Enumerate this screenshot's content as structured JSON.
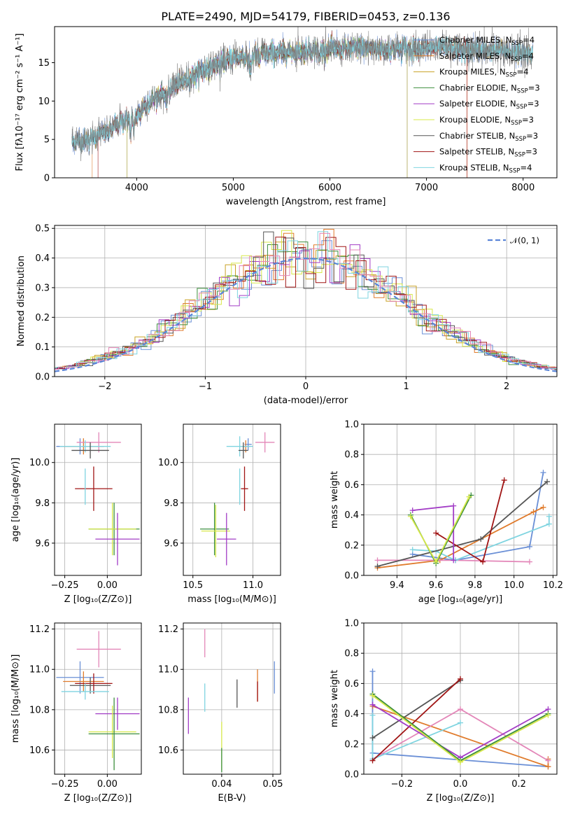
{
  "colors": {
    "Chabrier MILES": "#6a8fd6",
    "Salpeter MILES": "#e07b2c",
    "Kroupa MILES": "#c9a227",
    "Chabrier ELODIE": "#3d8f3d",
    "Salpeter ELODIE": "#a23cc6",
    "Kroupa ELODIE": "#d7e84a",
    "Chabrier STELIB": "#555555",
    "Salpeter STELIB": "#a01515",
    "Kroupa STELIB": "#7fd4e0",
    "Pink": "#e386b8",
    "Normal": "#5b85d8"
  },
  "chart_data": [
    {
      "id": "spectrum",
      "type": "line",
      "title": "PLATE=2490, MJD=54179, FIBERID=0453, z=0.136",
      "xlabel": "wavelength [Angstrom, rest frame]",
      "ylabel": "Flux [fλ10⁻¹⁷ erg cm⁻² s⁻¹ A⁻¹]",
      "xlim": [
        3150,
        8350
      ],
      "ylim": [
        0,
        19.7
      ],
      "xticks": [
        4000,
        5000,
        6000,
        7000,
        8000
      ],
      "yticks": [
        0,
        5,
        10,
        15
      ],
      "continuum_x": [
        3330,
        3500,
        3700,
        3900,
        4100,
        4300,
        4500,
        4700,
        4900,
        5100,
        5300,
        5500,
        5700,
        5900,
        6100,
        6300,
        6500,
        6700,
        6900,
        7100,
        7300,
        7500,
        7700,
        7900,
        8100
      ],
      "continuum_y": [
        4.7,
        5.0,
        6.0,
        7.8,
        9.7,
        11.4,
        12.7,
        14.0,
        15.2,
        15.8,
        16.1,
        16.3,
        16.5,
        16.7,
        16.8,
        16.9,
        16.8,
        16.8,
        16.9,
        16.9,
        16.8,
        16.7,
        16.6,
        16.5,
        16.2
      ],
      "legend_position": "upper-right",
      "legend": [
        {
          "label": "Chabrier MILES, N",
          "sub": "SSP",
          "suffix": "=4",
          "color_key": "Chabrier MILES"
        },
        {
          "label": "Salpeter MILES, N",
          "sub": "SSP",
          "suffix": "=4",
          "color_key": "Salpeter MILES"
        },
        {
          "label": "Kroupa MILES, N",
          "sub": "SSP",
          "suffix": "=4",
          "color_key": "Kroupa MILES"
        },
        {
          "label": "Chabrier ELODIE, N",
          "sub": "SSP",
          "suffix": "=3",
          "color_key": "Chabrier ELODIE"
        },
        {
          "label": "Salpeter ELODIE, N",
          "sub": "SSP",
          "suffix": "=3",
          "color_key": "Salpeter ELODIE"
        },
        {
          "label": "Kroupa ELODIE, N",
          "sub": "SSP",
          "suffix": "=3",
          "color_key": "Kroupa ELODIE"
        },
        {
          "label": "Chabrier STELIB, N",
          "sub": "SSP",
          "suffix": "=3",
          "color_key": "Chabrier STELIB"
        },
        {
          "label": "Salpeter STELIB, N",
          "sub": "SSP",
          "suffix": "=3",
          "color_key": "Salpeter STELIB"
        },
        {
          "label": "Kroupa STELIB, N",
          "sub": "SSP",
          "suffix": "=4",
          "color_key": "Kroupa STELIB"
        }
      ]
    },
    {
      "id": "residuals",
      "type": "line",
      "xlabel": "(data-model)/error",
      "ylabel": "Normed distribution",
      "xlim": [
        -2.5,
        2.5
      ],
      "ylim": [
        0,
        0.51
      ],
      "xticks": [
        -2,
        -1,
        0,
        1,
        2
      ],
      "yticks": [
        0.0,
        0.1,
        0.2,
        0.3,
        0.4,
        0.5
      ],
      "bin_width": 0.1,
      "grid": true,
      "legend_position": "upper-right",
      "legend": [
        {
          "label": "𝒩(0, 1)",
          "color_key": "Normal"
        }
      ]
    },
    {
      "id": "age_vs_Z",
      "type": "scatter",
      "xlabel": "Z [log₁₀(Z/Z⊙)]",
      "ylabel": "age  [log₁₀(age/yr)]",
      "xlim": [
        -0.31,
        0.2
      ],
      "ylim": [
        9.44,
        10.19
      ],
      "xticks": [
        -0.25,
        0.0
      ],
      "yticks": [
        9.6,
        9.8,
        10.0
      ],
      "grid": true,
      "points": [
        {
          "color_key": "Chabrier MILES",
          "x": -0.16,
          "y": 10.08,
          "xerr": 0.14,
          "yerr": 0.04
        },
        {
          "color_key": "Salpeter MILES",
          "x": -0.14,
          "y": 10.08,
          "xerr": 0.12,
          "yerr": 0.04
        },
        {
          "color_key": "Pink",
          "x": -0.05,
          "y": 10.1,
          "xerr": 0.13,
          "yerr": 0.05
        },
        {
          "color_key": "Kroupa STELIB",
          "x": -0.13,
          "y": 10.08,
          "xerr": 0.15,
          "yerr": 0.03
        },
        {
          "color_key": "Chabrier STELIB",
          "x": -0.1,
          "y": 10.06,
          "xerr": 0.11,
          "yerr": 0.04
        },
        {
          "color_key": "Salpeter STELIB",
          "x": -0.08,
          "y": 9.87,
          "xerr": 0.11,
          "yerr": 0.11
        },
        {
          "color_key": "Chabrier ELODIE",
          "x": 0.04,
          "y": 9.67,
          "xerr": 0.15,
          "yerr": 0.13
        },
        {
          "color_key": "Kroupa ELODIE",
          "x": 0.03,
          "y": 9.67,
          "xerr": 0.14,
          "yerr": 0.13
        },
        {
          "color_key": "Salpeter ELODIE",
          "x": 0.06,
          "y": 9.62,
          "xerr": 0.13,
          "yerr": 0.13
        },
        {
          "color_key": "Kroupa STELIB",
          "x": -0.13,
          "y": 9.88,
          "xerr": 0.0,
          "yerr": 0.09
        }
      ]
    },
    {
      "id": "age_vs_mass",
      "type": "scatter",
      "xlabel": "mass [log₁₀(M/M⊙)]",
      "xlim": [
        10.42,
        11.23
      ],
      "ylim": [
        9.44,
        10.19
      ],
      "xticks": [
        10.5,
        11.0
      ],
      "yticks": [
        9.6,
        9.8,
        10.0
      ],
      "grid": true,
      "points": [
        {
          "color_key": "Pink",
          "x": 11.1,
          "y": 10.1,
          "xerr": 0.08,
          "yerr": 0.05
        },
        {
          "color_key": "Chabrier MILES",
          "x": 10.96,
          "y": 10.09,
          "xerr": 0.03,
          "yerr": 0.03
        },
        {
          "color_key": "Salpeter MILES",
          "x": 10.94,
          "y": 10.08,
          "xerr": 0.04,
          "yerr": 0.03
        },
        {
          "color_key": "Kroupa STELIB",
          "x": 10.89,
          "y": 10.08,
          "xerr": 0.11,
          "yerr": 0.05
        },
        {
          "color_key": "Chabrier STELIB",
          "x": 10.92,
          "y": 10.06,
          "xerr": 0.04,
          "yerr": 0.04
        },
        {
          "color_key": "Salpeter STELIB",
          "x": 10.93,
          "y": 9.87,
          "xerr": 0.03,
          "yerr": 0.11
        },
        {
          "color_key": "Kroupa STELIB",
          "x": 10.89,
          "y": 9.88,
          "xerr": 0.0,
          "yerr": 0.09
        },
        {
          "color_key": "Chabrier ELODIE",
          "x": 10.68,
          "y": 9.67,
          "xerr": 0.12,
          "yerr": 0.13
        },
        {
          "color_key": "Kroupa ELODIE",
          "x": 10.69,
          "y": 9.66,
          "xerr": 0.12,
          "yerr": 0.13
        },
        {
          "color_key": "Salpeter ELODIE",
          "x": 10.78,
          "y": 9.62,
          "xerr": 0.08,
          "yerr": 0.13
        }
      ]
    },
    {
      "id": "weight_vs_age",
      "type": "line",
      "xlabel": "age  [log₁₀(age/yr)]",
      "ylabel": "mass weight",
      "xlim": [
        9.23,
        10.22
      ],
      "ylim": [
        0,
        1.0
      ],
      "xticks": [
        9.4,
        9.6,
        9.8,
        10.0,
        10.2
      ],
      "yticks": [
        0.0,
        0.2,
        0.4,
        0.6,
        0.8,
        1.0
      ],
      "grid": true,
      "series": [
        {
          "color_key": "Chabrier MILES",
          "x": [
            9.48,
            9.7,
            10.08,
            10.15
          ],
          "y": [
            0.14,
            0.1,
            0.19,
            0.68
          ]
        },
        {
          "color_key": "Salpeter MILES",
          "x": [
            9.3,
            9.62,
            10.1,
            10.15
          ],
          "y": [
            0.05,
            0.1,
            0.42,
            0.45
          ]
        },
        {
          "color_key": "Pink",
          "x": [
            9.3,
            9.7,
            10.08
          ],
          "y": [
            0.1,
            0.1,
            0.09
          ]
        },
        {
          "color_key": "Kroupa STELIB",
          "x": [
            9.48,
            9.6,
            9.7,
            10.18,
            10.18
          ],
          "y": [
            0.17,
            0.16,
            0.1,
            0.34,
            0.39
          ]
        },
        {
          "color_key": "Chabrier STELIB",
          "x": [
            9.3,
            9.83,
            10.17
          ],
          "y": [
            0.06,
            0.24,
            0.62
          ]
        },
        {
          "color_key": "Salpeter STELIB",
          "x": [
            9.6,
            9.84,
            9.95
          ],
          "y": [
            0.28,
            0.09,
            0.63
          ]
        },
        {
          "color_key": "Salpeter ELODIE",
          "x": [
            9.48,
            9.69,
            9.69
          ],
          "y": [
            0.43,
            0.46,
            0.1
          ]
        },
        {
          "color_key": "Chabrier ELODIE",
          "x": [
            9.47,
            9.6,
            9.78
          ],
          "y": [
            0.4,
            0.08,
            0.53
          ]
        },
        {
          "color_key": "Kroupa ELODIE",
          "x": [
            9.47,
            9.6,
            9.77
          ],
          "y": [
            0.39,
            0.09,
            0.52
          ]
        }
      ]
    },
    {
      "id": "mass_vs_Z",
      "type": "scatter",
      "xlabel": "Z [log₁₀(Z/Z⊙)]",
      "ylabel": "mass [log₁₀(M/M⊙)]",
      "xlim": [
        -0.31,
        0.2
      ],
      "ylim": [
        10.48,
        11.23
      ],
      "xticks": [
        -0.25,
        0.0
      ],
      "yticks": [
        10.6,
        10.8,
        11.0,
        11.2
      ],
      "grid": true,
      "points": [
        {
          "color_key": "Pink",
          "x": -0.05,
          "y": 11.1,
          "xerr": 0.13,
          "yerr": 0.09
        },
        {
          "color_key": "Chabrier MILES",
          "x": -0.16,
          "y": 10.96,
          "xerr": 0.14,
          "yerr": 0.08
        },
        {
          "color_key": "Salpeter MILES",
          "x": -0.14,
          "y": 10.94,
          "xerr": 0.12,
          "yerr": 0.05
        },
        {
          "color_key": "Chabrier STELIB",
          "x": -0.1,
          "y": 10.92,
          "xerr": 0.12,
          "yerr": 0.04
        },
        {
          "color_key": "Salpeter STELIB",
          "x": -0.08,
          "y": 10.93,
          "xerr": 0.11,
          "yerr": 0.05
        },
        {
          "color_key": "Kroupa STELIB",
          "x": -0.13,
          "y": 10.89,
          "xerr": 0.14,
          "yerr": 0.04
        },
        {
          "color_key": "Salpeter ELODIE",
          "x": 0.06,
          "y": 10.78,
          "xerr": 0.13,
          "yerr": 0.08
        },
        {
          "color_key": "Kroupa ELODIE",
          "x": 0.03,
          "y": 10.69,
          "xerr": 0.14,
          "yerr": 0.13
        },
        {
          "color_key": "Chabrier ELODIE",
          "x": 0.04,
          "y": 10.68,
          "xerr": 0.15,
          "yerr": 0.18
        }
      ]
    },
    {
      "id": "mass_vs_ebv",
      "type": "scatter",
      "xlabel": "E(B-V)",
      "xlim": [
        0.0325,
        0.0515
      ],
      "ylim": [
        10.48,
        11.23
      ],
      "xticks": [
        0.04,
        0.05
      ],
      "yticks": [
        10.6,
        10.8,
        11.0,
        11.2
      ],
      "grid": true,
      "points": [
        {
          "color_key": "Pink",
          "x": 0.0367,
          "y": 11.13,
          "xerr": 0.0,
          "yerr": 0.07
        },
        {
          "color_key": "Chabrier MILES",
          "x": 0.0503,
          "y": 10.96,
          "xerr": 0.0,
          "yerr": 0.08
        },
        {
          "color_key": "Salpeter MILES",
          "x": 0.047,
          "y": 10.92,
          "xerr": 0.0,
          "yerr": 0.08
        },
        {
          "color_key": "Salpeter STELIB",
          "x": 0.047,
          "y": 10.89,
          "xerr": 0.0,
          "yerr": 0.05
        },
        {
          "color_key": "Chabrier STELIB",
          "x": 0.043,
          "y": 10.88,
          "xerr": 0.0,
          "yerr": 0.07
        },
        {
          "color_key": "Kroupa STELIB",
          "x": 0.0367,
          "y": 10.86,
          "xerr": 0.0,
          "yerr": 0.07
        },
        {
          "color_key": "Salpeter ELODIE",
          "x": 0.0335,
          "y": 10.77,
          "xerr": 0.0,
          "yerr": 0.09
        },
        {
          "color_key": "Kroupa ELODIE",
          "x": 0.04,
          "y": 10.62,
          "xerr": 0.0,
          "yerr": 0.12
        },
        {
          "color_key": "Chabrier ELODIE",
          "x": 0.04,
          "y": 10.55,
          "xerr": 0.0,
          "yerr": 0.06
        }
      ]
    },
    {
      "id": "weight_vs_Z",
      "type": "line",
      "xlabel": "Z [log₁₀(Z/Z⊙)]",
      "ylabel": "mass weight",
      "xlim": [
        -0.33,
        0.33
      ],
      "ylim": [
        0,
        1.0
      ],
      "xticks": [
        -0.2,
        0.0,
        0.2
      ],
      "yticks": [
        0.0,
        0.2,
        0.4,
        0.6,
        0.8,
        1.0
      ],
      "grid": true,
      "series": [
        {
          "color_key": "Chabrier MILES",
          "x": [
            -0.3,
            -0.3,
            0.3
          ],
          "y": [
            0.68,
            0.14,
            0.05
          ]
        },
        {
          "color_key": "Salpeter MILES",
          "x": [
            -0.3,
            0.3,
            0.3
          ],
          "y": [
            0.45,
            0.05,
            0.1
          ]
        },
        {
          "color_key": "Pink",
          "x": [
            -0.3,
            0.0,
            0.3
          ],
          "y": [
            0.1,
            0.43,
            0.09
          ]
        },
        {
          "color_key": "Kroupa STELIB",
          "x": [
            -0.3,
            -0.3,
            0.0
          ],
          "y": [
            0.39,
            0.1,
            0.34
          ]
        },
        {
          "color_key": "Chabrier STELIB",
          "x": [
            -0.3,
            0.0
          ],
          "y": [
            0.24,
            0.62
          ]
        },
        {
          "color_key": "Salpeter STELIB",
          "x": [
            -0.3,
            0.0
          ],
          "y": [
            0.09,
            0.63
          ]
        },
        {
          "color_key": "Salpeter ELODIE",
          "x": [
            -0.3,
            0.0,
            0.3
          ],
          "y": [
            0.46,
            0.11,
            0.43
          ]
        },
        {
          "color_key": "Chabrier ELODIE",
          "x": [
            -0.3,
            0.0,
            0.3
          ],
          "y": [
            0.53,
            0.09,
            0.4
          ]
        },
        {
          "color_key": "Kroupa ELODIE",
          "x": [
            -0.3,
            0.0,
            0.3
          ],
          "y": [
            0.52,
            0.08,
            0.39
          ]
        }
      ]
    }
  ]
}
